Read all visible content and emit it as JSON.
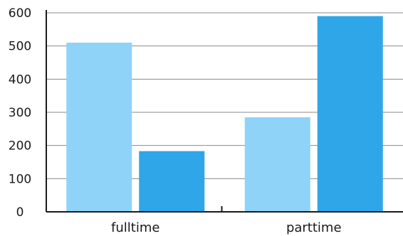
{
  "chart_data": {
    "type": "bar",
    "categories": [
      "fulltime",
      "parttime"
    ],
    "series": [
      {
        "values": [
          510,
          285
        ],
        "color": "#8fd3f8"
      },
      {
        "values": [
          183,
          590
        ],
        "color": "#2ea6e8"
      }
    ],
    "ylim": [
      0,
      600
    ],
    "yticks": [
      0,
      100,
      200,
      300,
      400,
      500,
      600
    ],
    "ytick_labels": [
      "0",
      "100",
      "200",
      "300",
      "400",
      "500",
      "600"
    ],
    "grid": true,
    "title": "",
    "xlabel": "",
    "ylabel": ""
  }
}
